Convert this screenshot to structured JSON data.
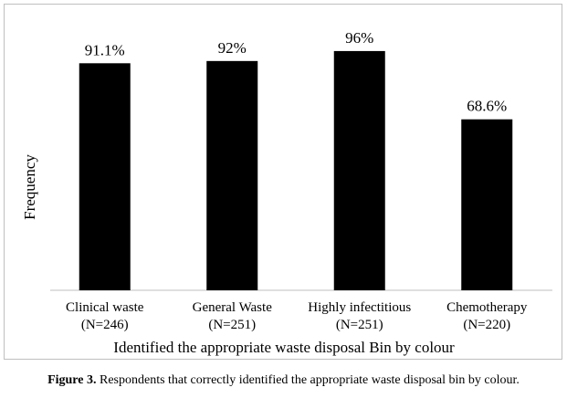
{
  "chart_data": {
    "type": "bar",
    "categories": [
      {
        "name": "Clinical waste",
        "n": "(N=246)"
      },
      {
        "name": "General Waste",
        "n": "(N=251)"
      },
      {
        "name": "Highly infectitious",
        "n": "(N=251)"
      },
      {
        "name": "Chemotherapy",
        "n": "(N=220)"
      }
    ],
    "values": [
      91.1,
      92,
      96,
      68.6
    ],
    "data_labels": [
      "91.1%",
      "92%",
      "96%",
      "68.6%"
    ],
    "ylabel": "Frequency",
    "xlabel": "Identified the appropriate waste disposal Bin by colour",
    "ylim": [
      0,
      100
    ],
    "grid": false,
    "legend": "none",
    "bar_color": "#000000"
  },
  "caption": {
    "label": "Figure 3.",
    "text": " Respondents that correctly identified the appropriate waste disposal bin by colour."
  }
}
